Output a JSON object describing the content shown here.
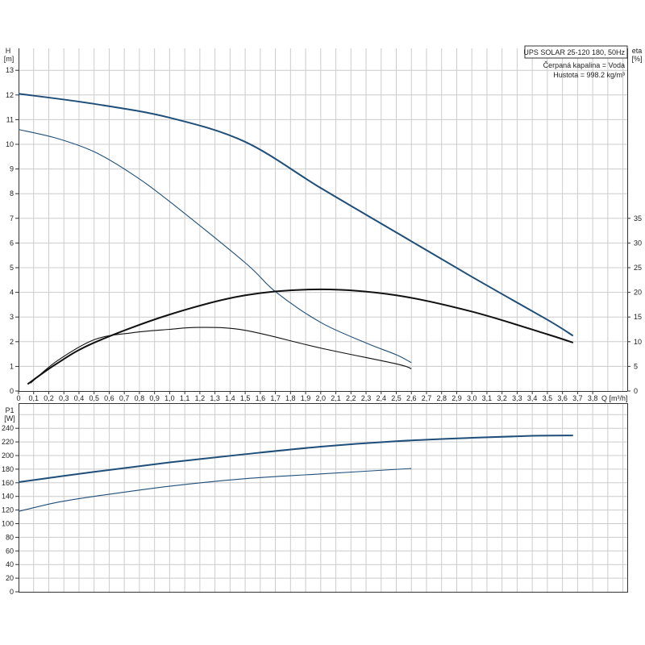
{
  "legend": {
    "title": "UPS SOLAR 25-120 180, 50Hz",
    "line1": "Čerpaná kapalina = Voda",
    "line2": "Hustota = 998.2 kg/m³"
  },
  "colors": {
    "head": "#1f4e79",
    "eta": "#111111",
    "power": "#1f4e79",
    "grid": "#cccccc"
  },
  "chart_data": [
    {
      "type": "line",
      "ylabel": "H",
      "ylabel_unit": "[m]",
      "y2label": "eta",
      "y2label_unit": "[%]",
      "xlabel": "Q [m³/h]",
      "xlim": [
        0,
        4.0
      ],
      "ylim": [
        0,
        13.8
      ],
      "y2lim": [
        0,
        69
      ],
      "grid": true,
      "x_ticks": [
        "0",
        "0,1",
        "0,2",
        "0,3",
        "0,4",
        "0,5",
        "0,6",
        "0,7",
        "0,8",
        "0,9",
        "1,0",
        "1,1",
        "1,2",
        "1,3",
        "1,4",
        "1,5",
        "1,6",
        "1,7",
        "1,8",
        "1,9",
        "2,0",
        "2,1",
        "2,2",
        "2,3",
        "2,4",
        "2,5",
        "2,6",
        "2,7",
        "2,8",
        "2,9",
        "3,0",
        "3,1",
        "3,2",
        "3,3",
        "3,4",
        "3,5",
        "3,6",
        "3,7",
        "3,8"
      ],
      "y_ticks": [
        0,
        1,
        2,
        3,
        4,
        5,
        6,
        7,
        8,
        9,
        10,
        11,
        12,
        13
      ],
      "y2_ticks": [
        0,
        5,
        10,
        15,
        20,
        25,
        30,
        35
      ],
      "series": [
        {
          "axis": "H",
          "style": "thick",
          "x": [
            0,
            0.5,
            1.0,
            1.5,
            2.0,
            2.5,
            3.0,
            3.5,
            3.67
          ],
          "y": [
            12.05,
            11.64,
            11.08,
            10.1,
            8.23,
            6.43,
            4.63,
            2.89,
            2.24
          ]
        },
        {
          "axis": "H",
          "style": "thin",
          "x": [
            0,
            0.25,
            0.5,
            0.75,
            1.0,
            1.5,
            1.7,
            2.0,
            2.3,
            2.5,
            2.6
          ],
          "y": [
            10.6,
            10.25,
            9.7,
            8.8,
            7.68,
            5.2,
            4.03,
            2.78,
            1.95,
            1.47,
            1.15
          ]
        },
        {
          "axis": "eta",
          "style": "thick",
          "x": [
            0.06,
            0.25,
            0.5,
            1.0,
            1.5,
            2.0,
            2.5,
            3.0,
            3.5,
            3.67
          ],
          "y": [
            1.4,
            5.5,
            9.8,
            15.5,
            19.4,
            20.6,
            19.4,
            16.1,
            11.5,
            9.8
          ]
        },
        {
          "axis": "eta",
          "style": "thin",
          "x": [
            0.08,
            0.25,
            0.5,
            0.75,
            1.0,
            1.2,
            1.5,
            2.0,
            2.5,
            2.6
          ],
          "y": [
            1.6,
            6.0,
            10.4,
            11.8,
            12.5,
            12.9,
            12.3,
            8.7,
            5.5,
            4.5
          ]
        }
      ]
    },
    {
      "type": "line",
      "ylabel": "P1",
      "ylabel_unit": "[W]",
      "xlim": [
        0,
        4.0
      ],
      "ylim": [
        0,
        276
      ],
      "grid": true,
      "y_ticks": [
        0,
        20,
        40,
        60,
        80,
        100,
        120,
        140,
        160,
        180,
        200,
        220,
        240
      ],
      "series": [
        {
          "style": "thick",
          "x": [
            0,
            0.5,
            1.0,
            1.5,
            2.0,
            2.5,
            3.0,
            3.4,
            3.67
          ],
          "y": [
            161,
            176,
            190,
            202,
            213,
            221,
            226,
            229,
            229.5
          ]
        },
        {
          "style": "thin",
          "x": [
            0,
            0.25,
            0.5,
            1.0,
            1.5,
            2.0,
            2.6
          ],
          "y": [
            118,
            131,
            140,
            155,
            166,
            173,
            181
          ]
        }
      ]
    }
  ]
}
